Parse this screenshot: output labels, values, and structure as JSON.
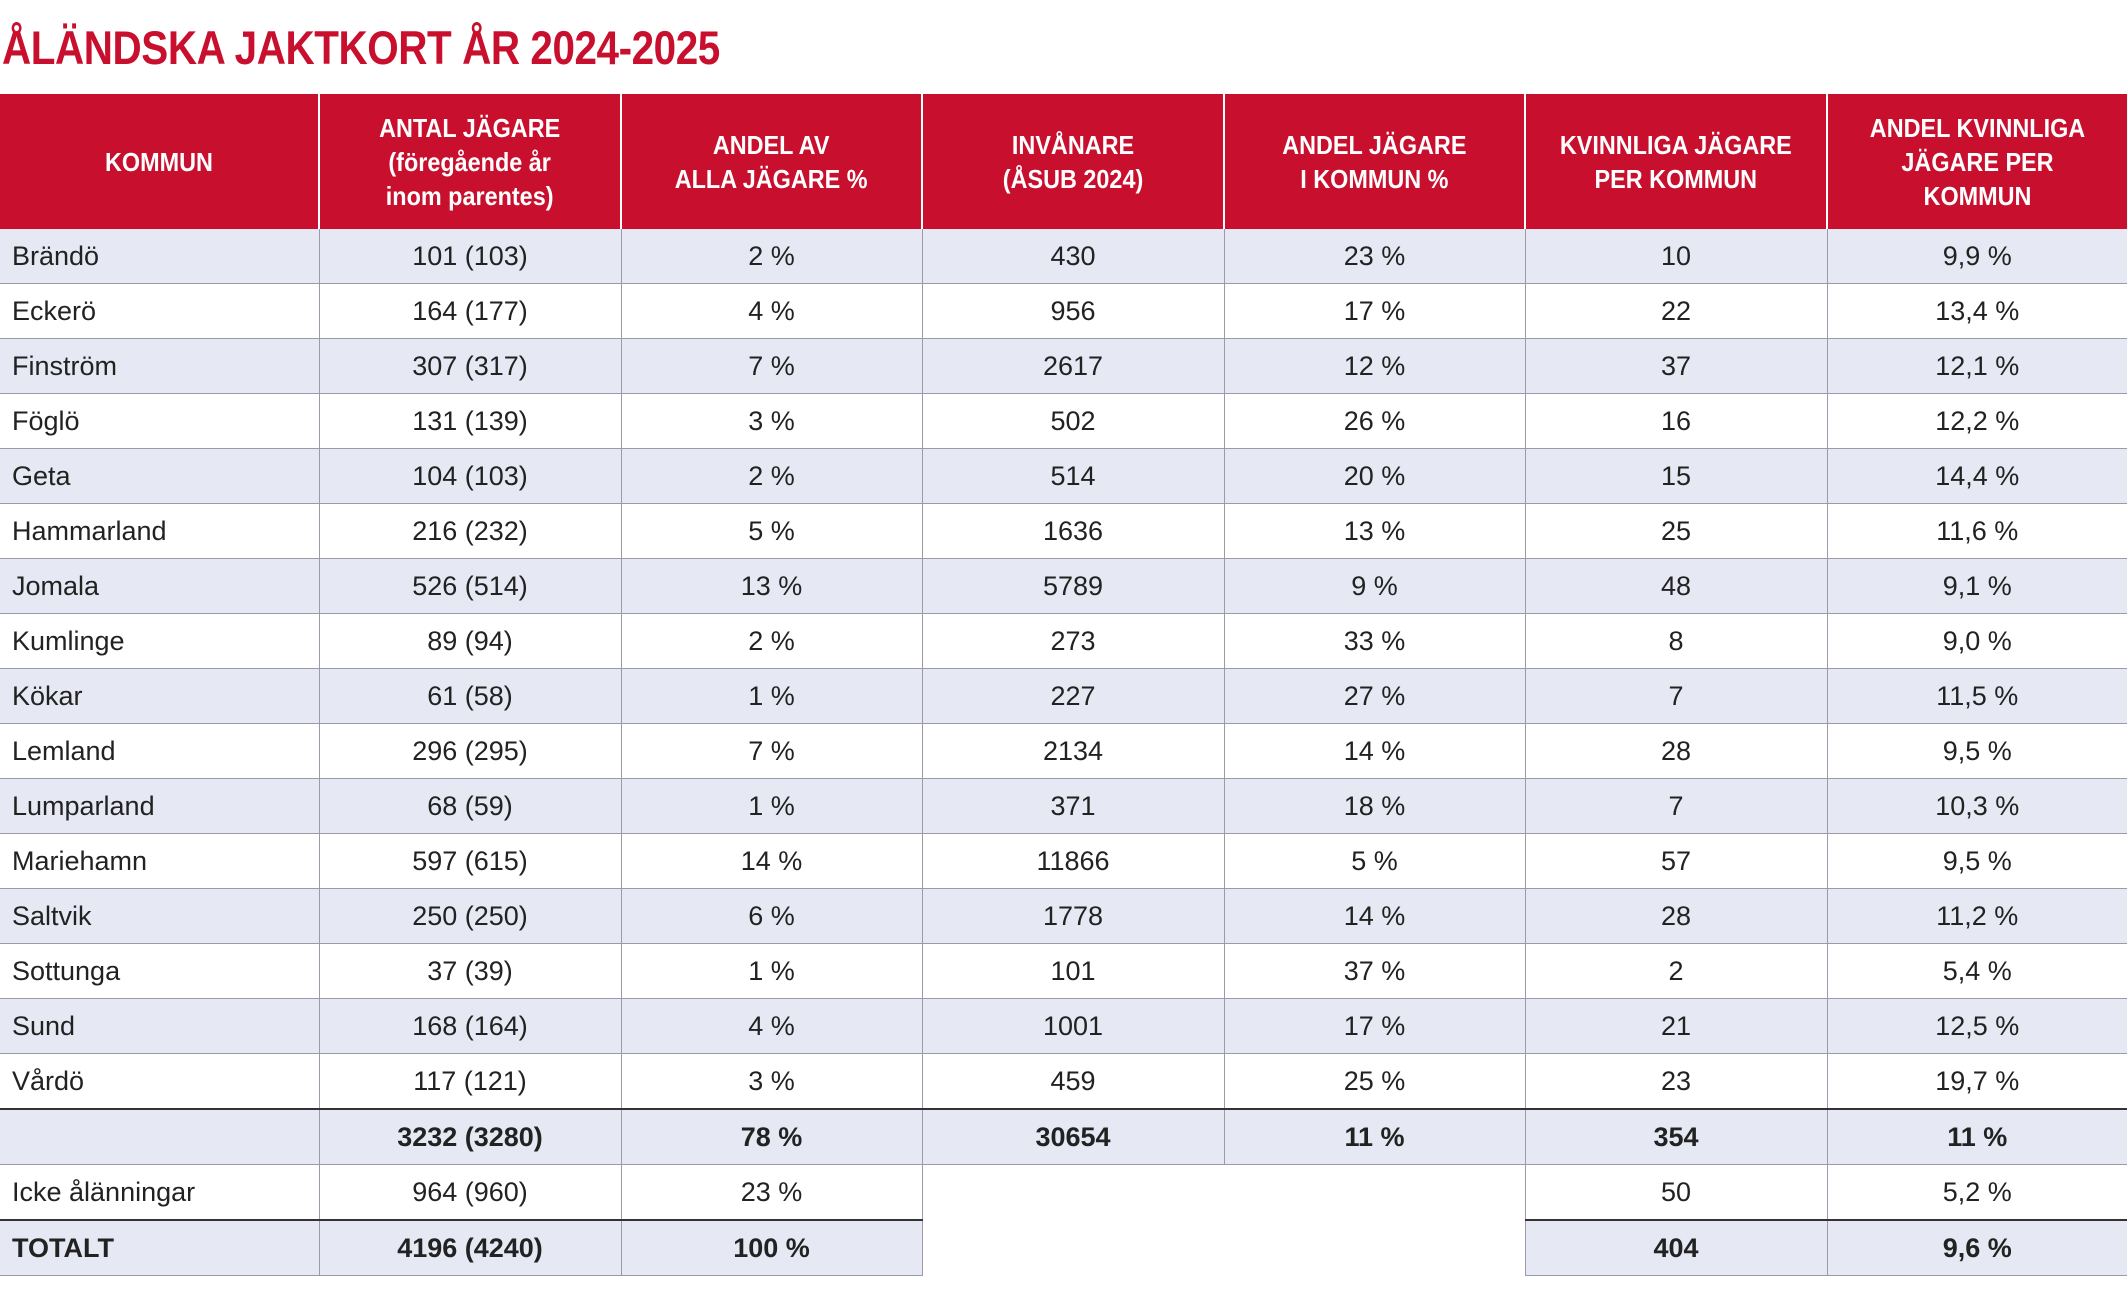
{
  "title": "ÅLÄNDSKA JAKTKORT ÅR 2024-2025",
  "headers": [
    [
      "KOMMUN"
    ],
    [
      "ANTAL JÄGARE",
      "(föregående år",
      "inom parentes)"
    ],
    [
      "ANDEL AV",
      "ALLA JÄGARE %"
    ],
    [
      "INVÅNARE",
      "(ÅSUB 2024)"
    ],
    [
      "ANDEL JÄGARE",
      "I KOMMUN %"
    ],
    [
      "KVINNLIGA JÄGARE",
      "PER KOMMUN"
    ],
    [
      "ANDEL KVINNLIGA",
      "JÄGARE PER KOMMUN"
    ]
  ],
  "rows": [
    [
      "Brändö",
      "101  (103)",
      "2 %",
      "430",
      "23 %",
      "10",
      "9,9 %"
    ],
    [
      "Eckerö",
      "164  (177)",
      "4 %",
      "956",
      "17 %",
      "22",
      "13,4 %"
    ],
    [
      "Finström",
      "307 (317)",
      "7 %",
      "2617",
      "12 %",
      "37",
      "12,1 %"
    ],
    [
      "Föglö",
      "131  (139)",
      "3 %",
      "502",
      "26 %",
      "16",
      "12,2 %"
    ],
    [
      "Geta",
      "104  (103)",
      "2 %",
      "514",
      "20 %",
      "15",
      "14,4 %"
    ],
    [
      "Hammarland",
      "216  (232)",
      "5 %",
      "1636",
      "13 %",
      "25",
      "11,6 %"
    ],
    [
      "Jomala",
      "526  (514)",
      "13 %",
      "5789",
      "9 %",
      "48",
      "9,1 %"
    ],
    [
      "Kumlinge",
      "89  (94)",
      "2 %",
      "273",
      "33 %",
      "8",
      "9,0 %"
    ],
    [
      "Kökar",
      "61 (58)",
      "1 %",
      "227",
      "27 %",
      "7",
      "11,5 %"
    ],
    [
      "Lemland",
      "296  (295)",
      "7 %",
      "2134",
      "14 %",
      "28",
      "9,5 %"
    ],
    [
      "Lumparland",
      "68  (59)",
      "1 %",
      "371",
      "18 %",
      "7",
      "10,3 %"
    ],
    [
      "Mariehamn",
      "597  (615)",
      "14 %",
      "11866",
      "5 %",
      "57",
      "9,5 %"
    ],
    [
      "Saltvik",
      "250  (250)",
      "6 %",
      "1778",
      "14 %",
      "28",
      "11,2 %"
    ],
    [
      "Sottunga",
      "37  (39)",
      "1 %",
      "101",
      "37 %",
      "2",
      "5,4 %"
    ],
    [
      "Sund",
      "168 (164)",
      "4 %",
      "1001",
      "17 %",
      "21",
      "12,5 %"
    ],
    [
      "Vårdö",
      "117  (121)",
      "3 %",
      "459",
      "25 %",
      "23",
      "19,7 %"
    ]
  ],
  "sum_row": [
    "",
    "3232  (3280)",
    "78 %",
    "30654",
    "11 %",
    "354",
    "11 %"
  ],
  "nonresident_row": {
    "label": "Icke ålänningar",
    "hunters": "964  (960)",
    "share": "23 %",
    "women": "50",
    "women_share": "5,2 %"
  },
  "total_row": {
    "label": "TOTALT",
    "hunters": "4196  (4240)",
    "share": "100 %",
    "women": "404",
    "women_share": "9,6 %"
  },
  "colors": {
    "accent": "#c8102e",
    "row_shade": "#e6e9f3",
    "grid": "#9a9aa8"
  }
}
